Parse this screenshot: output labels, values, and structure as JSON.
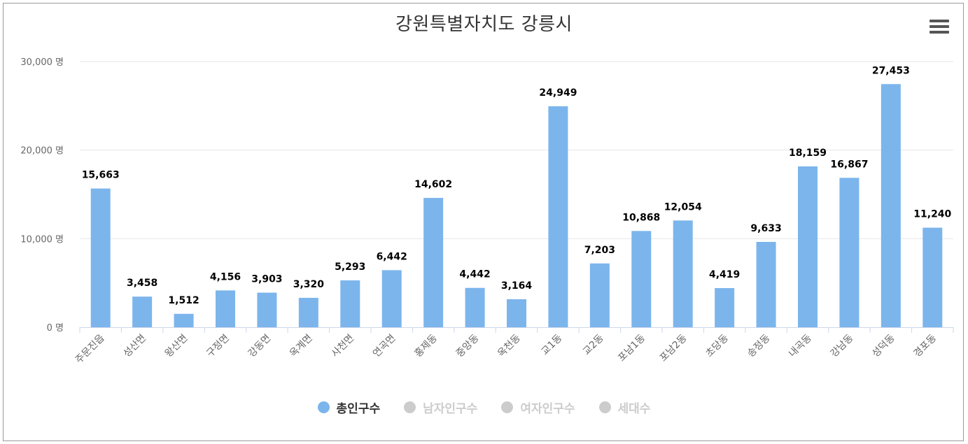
{
  "colors": {
    "bar": "#7cb5ec",
    "grid": "#e6e6e6",
    "axis_text": "#666666",
    "data_label": "#000000",
    "legend_inactive": "#cccccc",
    "legend_active_text": "#333333"
  },
  "chart_data": {
    "type": "bar",
    "title": "강원특별자치도 강릉시",
    "ylim": [
      0,
      30000
    ],
    "yticks": [
      {
        "value": 0,
        "label": "0 명"
      },
      {
        "value": 10000,
        "label": "10,000 명"
      },
      {
        "value": 20000,
        "label": "20,000 명"
      },
      {
        "value": 30000,
        "label": "30,000 명"
      }
    ],
    "categories": [
      "주문진읍",
      "성산면",
      "왕산면",
      "구정면",
      "강동면",
      "옥계면",
      "사천면",
      "연곡면",
      "홍제동",
      "중앙동",
      "옥천동",
      "교1동",
      "교2동",
      "포남1동",
      "포남2동",
      "초당동",
      "송정동",
      "내곡동",
      "강남동",
      "성덕동",
      "경포동"
    ],
    "series": [
      {
        "name": "총인구수",
        "visible": true,
        "values": [
          15663,
          3458,
          1512,
          4156,
          3903,
          3320,
          5293,
          6442,
          14602,
          4442,
          3164,
          24949,
          7203,
          10868,
          12054,
          4419,
          9633,
          18159,
          16867,
          27453,
          11240
        ],
        "labels": [
          "15,663",
          "3,458",
          "1,512",
          "4,156",
          "3,903",
          "3,320",
          "5,293",
          "6,442",
          "14,602",
          "4,442",
          "3,164",
          "24,949",
          "7,203",
          "10,868",
          "12,054",
          "4,419",
          "9,633",
          "18,159",
          "16,867",
          "27,453",
          "11,240"
        ]
      },
      {
        "name": "남자인구수",
        "visible": false
      },
      {
        "name": "여자인구수",
        "visible": false
      },
      {
        "name": "세대수",
        "visible": false
      }
    ],
    "legend_position": "bottom-center"
  }
}
